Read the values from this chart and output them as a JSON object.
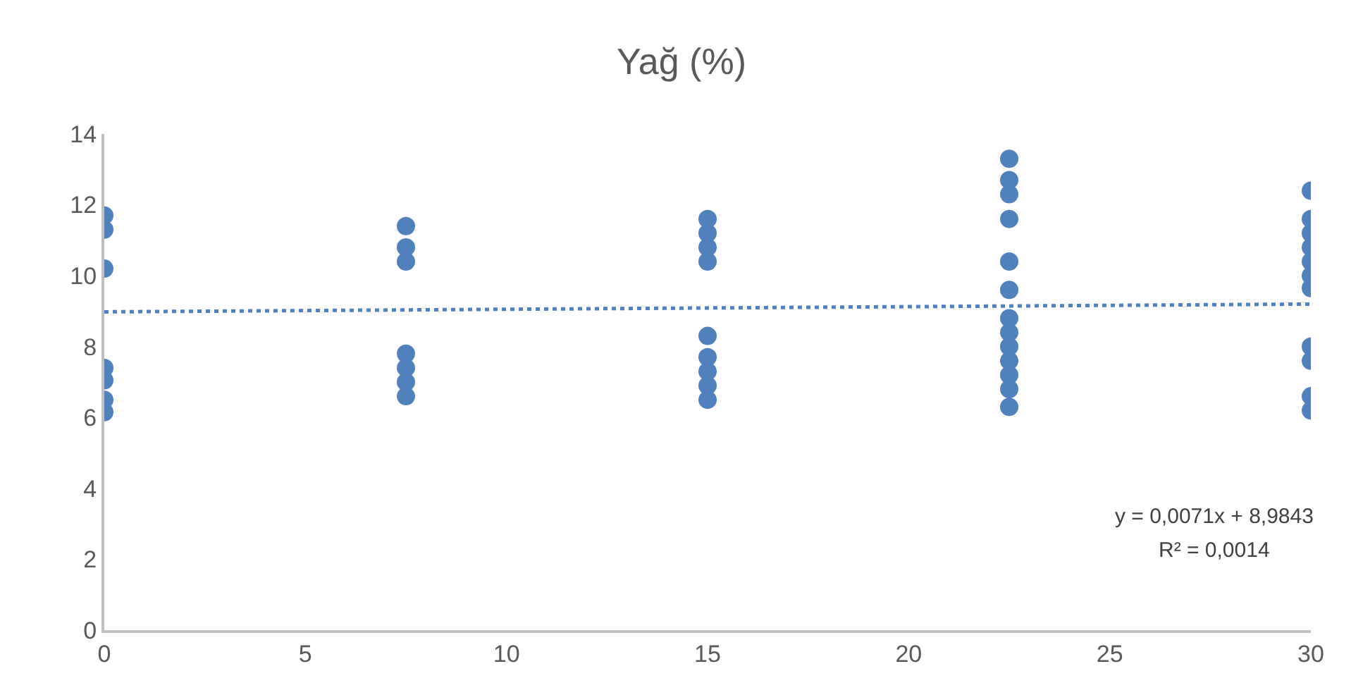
{
  "chart_data": {
    "type": "scatter",
    "title": "Yağ (%)",
    "grid": false,
    "xlim": [
      0,
      30
    ],
    "xticks": [
      0,
      5,
      10,
      15,
      20,
      25,
      30
    ],
    "ylim": [
      0,
      14
    ],
    "yticks": [
      0,
      2,
      4,
      6,
      8,
      10,
      12,
      14
    ],
    "annotations": [
      "y = 0,0071x + 8,9843",
      "R² = 0,0014"
    ],
    "series": [
      {
        "color": "#4f81bd",
        "marker": "circle",
        "x": [
          0,
          0,
          0,
          0,
          0,
          0,
          0,
          7.5,
          7.5,
          7.5,
          7.5,
          7.5,
          7.5,
          7.5,
          15,
          15,
          15,
          15,
          15,
          15,
          15,
          15,
          15,
          22.5,
          22.5,
          22.5,
          22.5,
          22.5,
          22.5,
          22.5,
          22.5,
          22.5,
          22.5,
          22.5,
          22.5,
          22.5,
          30,
          30,
          30,
          30,
          30,
          30,
          30,
          30,
          30,
          30,
          30
        ],
        "values": [
          11.7,
          11.3,
          10.2,
          7.4,
          7.05,
          6.5,
          6.15,
          11.4,
          10.8,
          10.4,
          7.8,
          7.4,
          7.0,
          6.6,
          11.6,
          11.2,
          10.8,
          10.4,
          8.3,
          7.7,
          7.3,
          6.9,
          6.5,
          13.3,
          12.7,
          12.3,
          11.6,
          10.4,
          9.6,
          8.8,
          8.4,
          8.0,
          7.6,
          7.2,
          6.8,
          6.3,
          12.4,
          11.6,
          11.2,
          10.8,
          10.4,
          10.0,
          9.65,
          8.0,
          7.6,
          6.6,
          6.2
        ]
      },
      {
        "type": "line",
        "color": "#4f81bd",
        "line_style": "dotted",
        "x": [
          0,
          30
        ],
        "values": [
          8.98,
          9.2
        ]
      }
    ]
  }
}
